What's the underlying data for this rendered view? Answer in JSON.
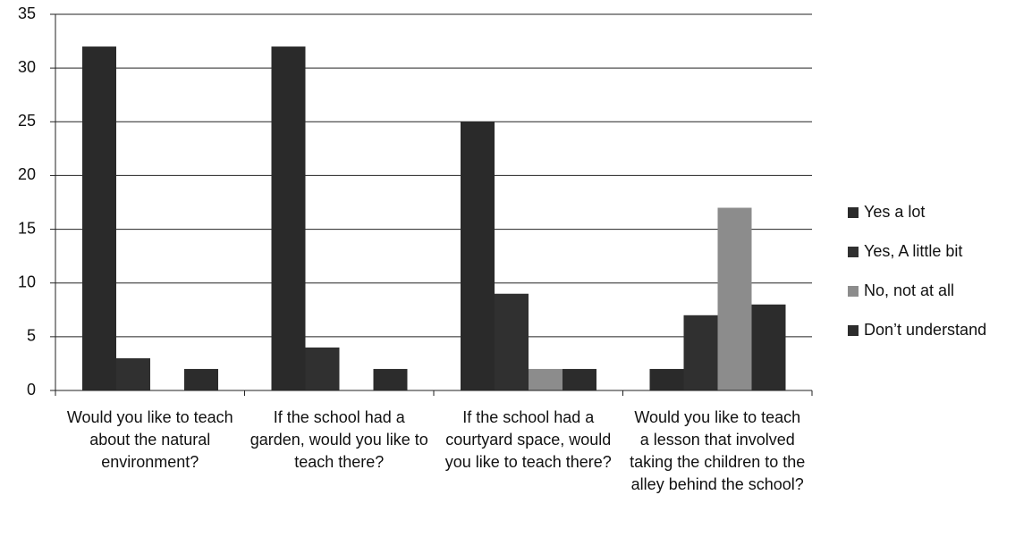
{
  "chart_data": {
    "type": "bar",
    "categories": [
      "Would you like to teach about the natural environment?",
      "If the school had a garden, would you like to teach there?",
      "If the school had a courtyard space, would you like to teach there?",
      "Would you like to teach a lesson that involved taking the children to the alley behind the school?"
    ],
    "series": [
      {
        "name": "Yes a lot",
        "color": "#2a2a2a",
        "values": [
          32,
          32,
          25,
          2
        ]
      },
      {
        "name": "Yes, A little bit",
        "color": "#303030",
        "values": [
          3,
          4,
          9,
          7
        ]
      },
      {
        "name": "No, not at all",
        "color": "#8c8c8c",
        "values": [
          0,
          0,
          2,
          17
        ]
      },
      {
        "name": "Don’t understand",
        "color": "#2c2c2c",
        "values": [
          2,
          2,
          2,
          8
        ]
      }
    ],
    "ylim": [
      0,
      35
    ],
    "yticks": [
      0,
      5,
      10,
      15,
      20,
      25,
      30,
      35
    ],
    "grid": true,
    "legend": "right"
  }
}
